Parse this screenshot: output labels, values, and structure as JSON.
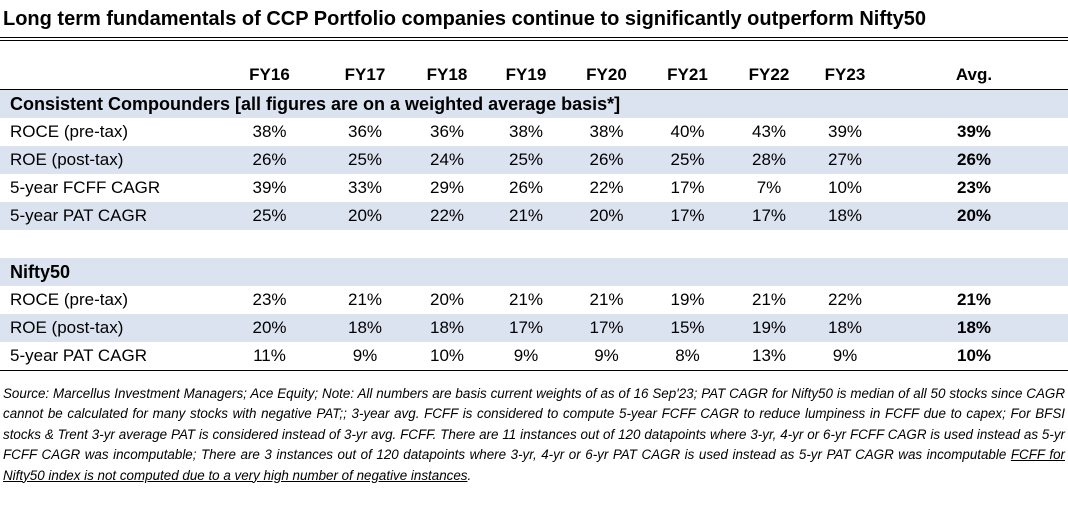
{
  "title": "Long term fundamentals of CCP Portfolio companies continue to significantly outperform Nifty50",
  "header": {
    "columns": [
      "FY16",
      "FY17",
      "FY18",
      "FY19",
      "FY20",
      "FY21",
      "FY22",
      "FY23",
      "Avg."
    ]
  },
  "sections": [
    {
      "label": "Consistent Compounders [all figures are on a weighted average basis*]",
      "rows": [
        {
          "label": "ROCE (pre-tax)",
          "values": [
            "38%",
            "36%",
            "36%",
            "38%",
            "38%",
            "40%",
            "43%",
            "39%",
            "39%"
          ]
        },
        {
          "label": "ROE (post-tax)",
          "values": [
            "26%",
            "25%",
            "24%",
            "25%",
            "26%",
            "25%",
            "28%",
            "27%",
            "26%"
          ]
        },
        {
          "label": "5-year FCFF CAGR",
          "values": [
            "39%",
            "33%",
            "29%",
            "26%",
            "22%",
            "17%",
            "7%",
            "10%",
            "23%"
          ]
        },
        {
          "label": "5-year PAT CAGR",
          "values": [
            "25%",
            "20%",
            "22%",
            "21%",
            "20%",
            "17%",
            "17%",
            "18%",
            "20%"
          ]
        }
      ]
    },
    {
      "label": "Nifty50",
      "rows": [
        {
          "label": "ROCE (pre-tax)",
          "values": [
            "23%",
            "21%",
            "20%",
            "21%",
            "21%",
            "19%",
            "21%",
            "22%",
            "21%"
          ]
        },
        {
          "label": "ROE (post-tax)",
          "values": [
            "20%",
            "18%",
            "18%",
            "17%",
            "17%",
            "15%",
            "19%",
            "18%",
            "18%"
          ]
        },
        {
          "label": "5-year PAT CAGR",
          "values": [
            "11%",
            "9%",
            "10%",
            "9%",
            "9%",
            "8%",
            "13%",
            "9%",
            "10%"
          ]
        }
      ]
    }
  ],
  "source": {
    "text": "Source: Marcellus Investment Managers; Ace Equity; Note: All numbers are basis current weights of as of 16 Sep'23; PAT CAGR for Nifty50 is median of all 50 stocks since CAGR cannot be calculated for many stocks with negative PAT;; 3-year avg. FCFF is considered to compute 5-year FCFF CAGR to reduce lumpiness in FCFF due to capex; For BFSI stocks & Trent 3-yr average PAT is considered instead of 3-yr avg. FCFF. There are 11 instances out of 120 datapoints where 3-yr, 4-yr or 6-yr FCFF CAGR is used instead as 5-yr FCFF CAGR was incomputable; There are 3 instances out of 120 datapoints where 3-yr, 4-yr or 6-yr PAT CAGR is used instead as 5-yr PAT CAGR was incomputable ",
    "underlined": "FCFF for Nifty50 index is not computed due to a very high number of negative instances",
    "end": "."
  }
}
